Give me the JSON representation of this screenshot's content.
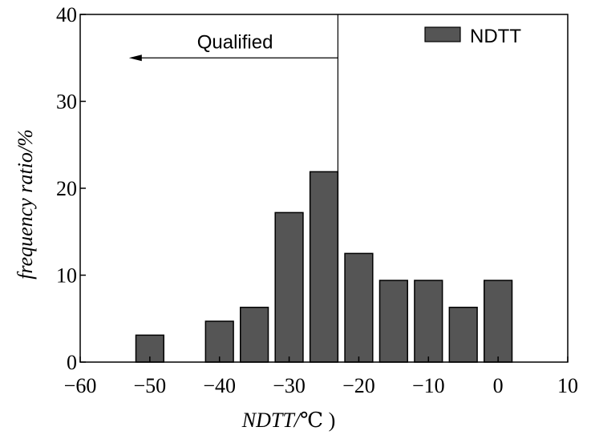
{
  "chart_data": {
    "type": "bar",
    "title": "",
    "xlabel_main": "NDTT/",
    "xlabel_unit": "℃ )",
    "ylabel": "frequency ratio/%",
    "xlim": [
      -60,
      10
    ],
    "ylim": [
      0,
      40
    ],
    "xticks": [
      -60,
      -50,
      -40,
      -30,
      -20,
      -10,
      0,
      10
    ],
    "yticks": [
      0,
      10,
      20,
      30,
      40
    ],
    "xtick_labels": [
      "−60",
      "−50",
      "−40",
      "−30",
      "−20",
      "−10",
      "0",
      "10"
    ],
    "ytick_labels": [
      "0",
      "10",
      "20",
      "30",
      "40"
    ],
    "series": [
      {
        "name": "NDTT",
        "color": "#555555",
        "x": [
          -50,
          -40,
          -35,
          -30,
          -25,
          -20,
          -15,
          -10,
          -5,
          0
        ],
        "values": [
          3.1,
          4.7,
          6.3,
          17.2,
          21.9,
          12.5,
          9.4,
          9.4,
          6.3,
          9.4
        ]
      }
    ],
    "bar_width": 4,
    "legend": {
      "position": "top-right",
      "label": "NDTT"
    },
    "threshold_line_x": -23,
    "annotation": {
      "text": "Qualified",
      "arrow_from_x": -23,
      "arrow_to_x": -53,
      "arrow_y": 35
    }
  }
}
